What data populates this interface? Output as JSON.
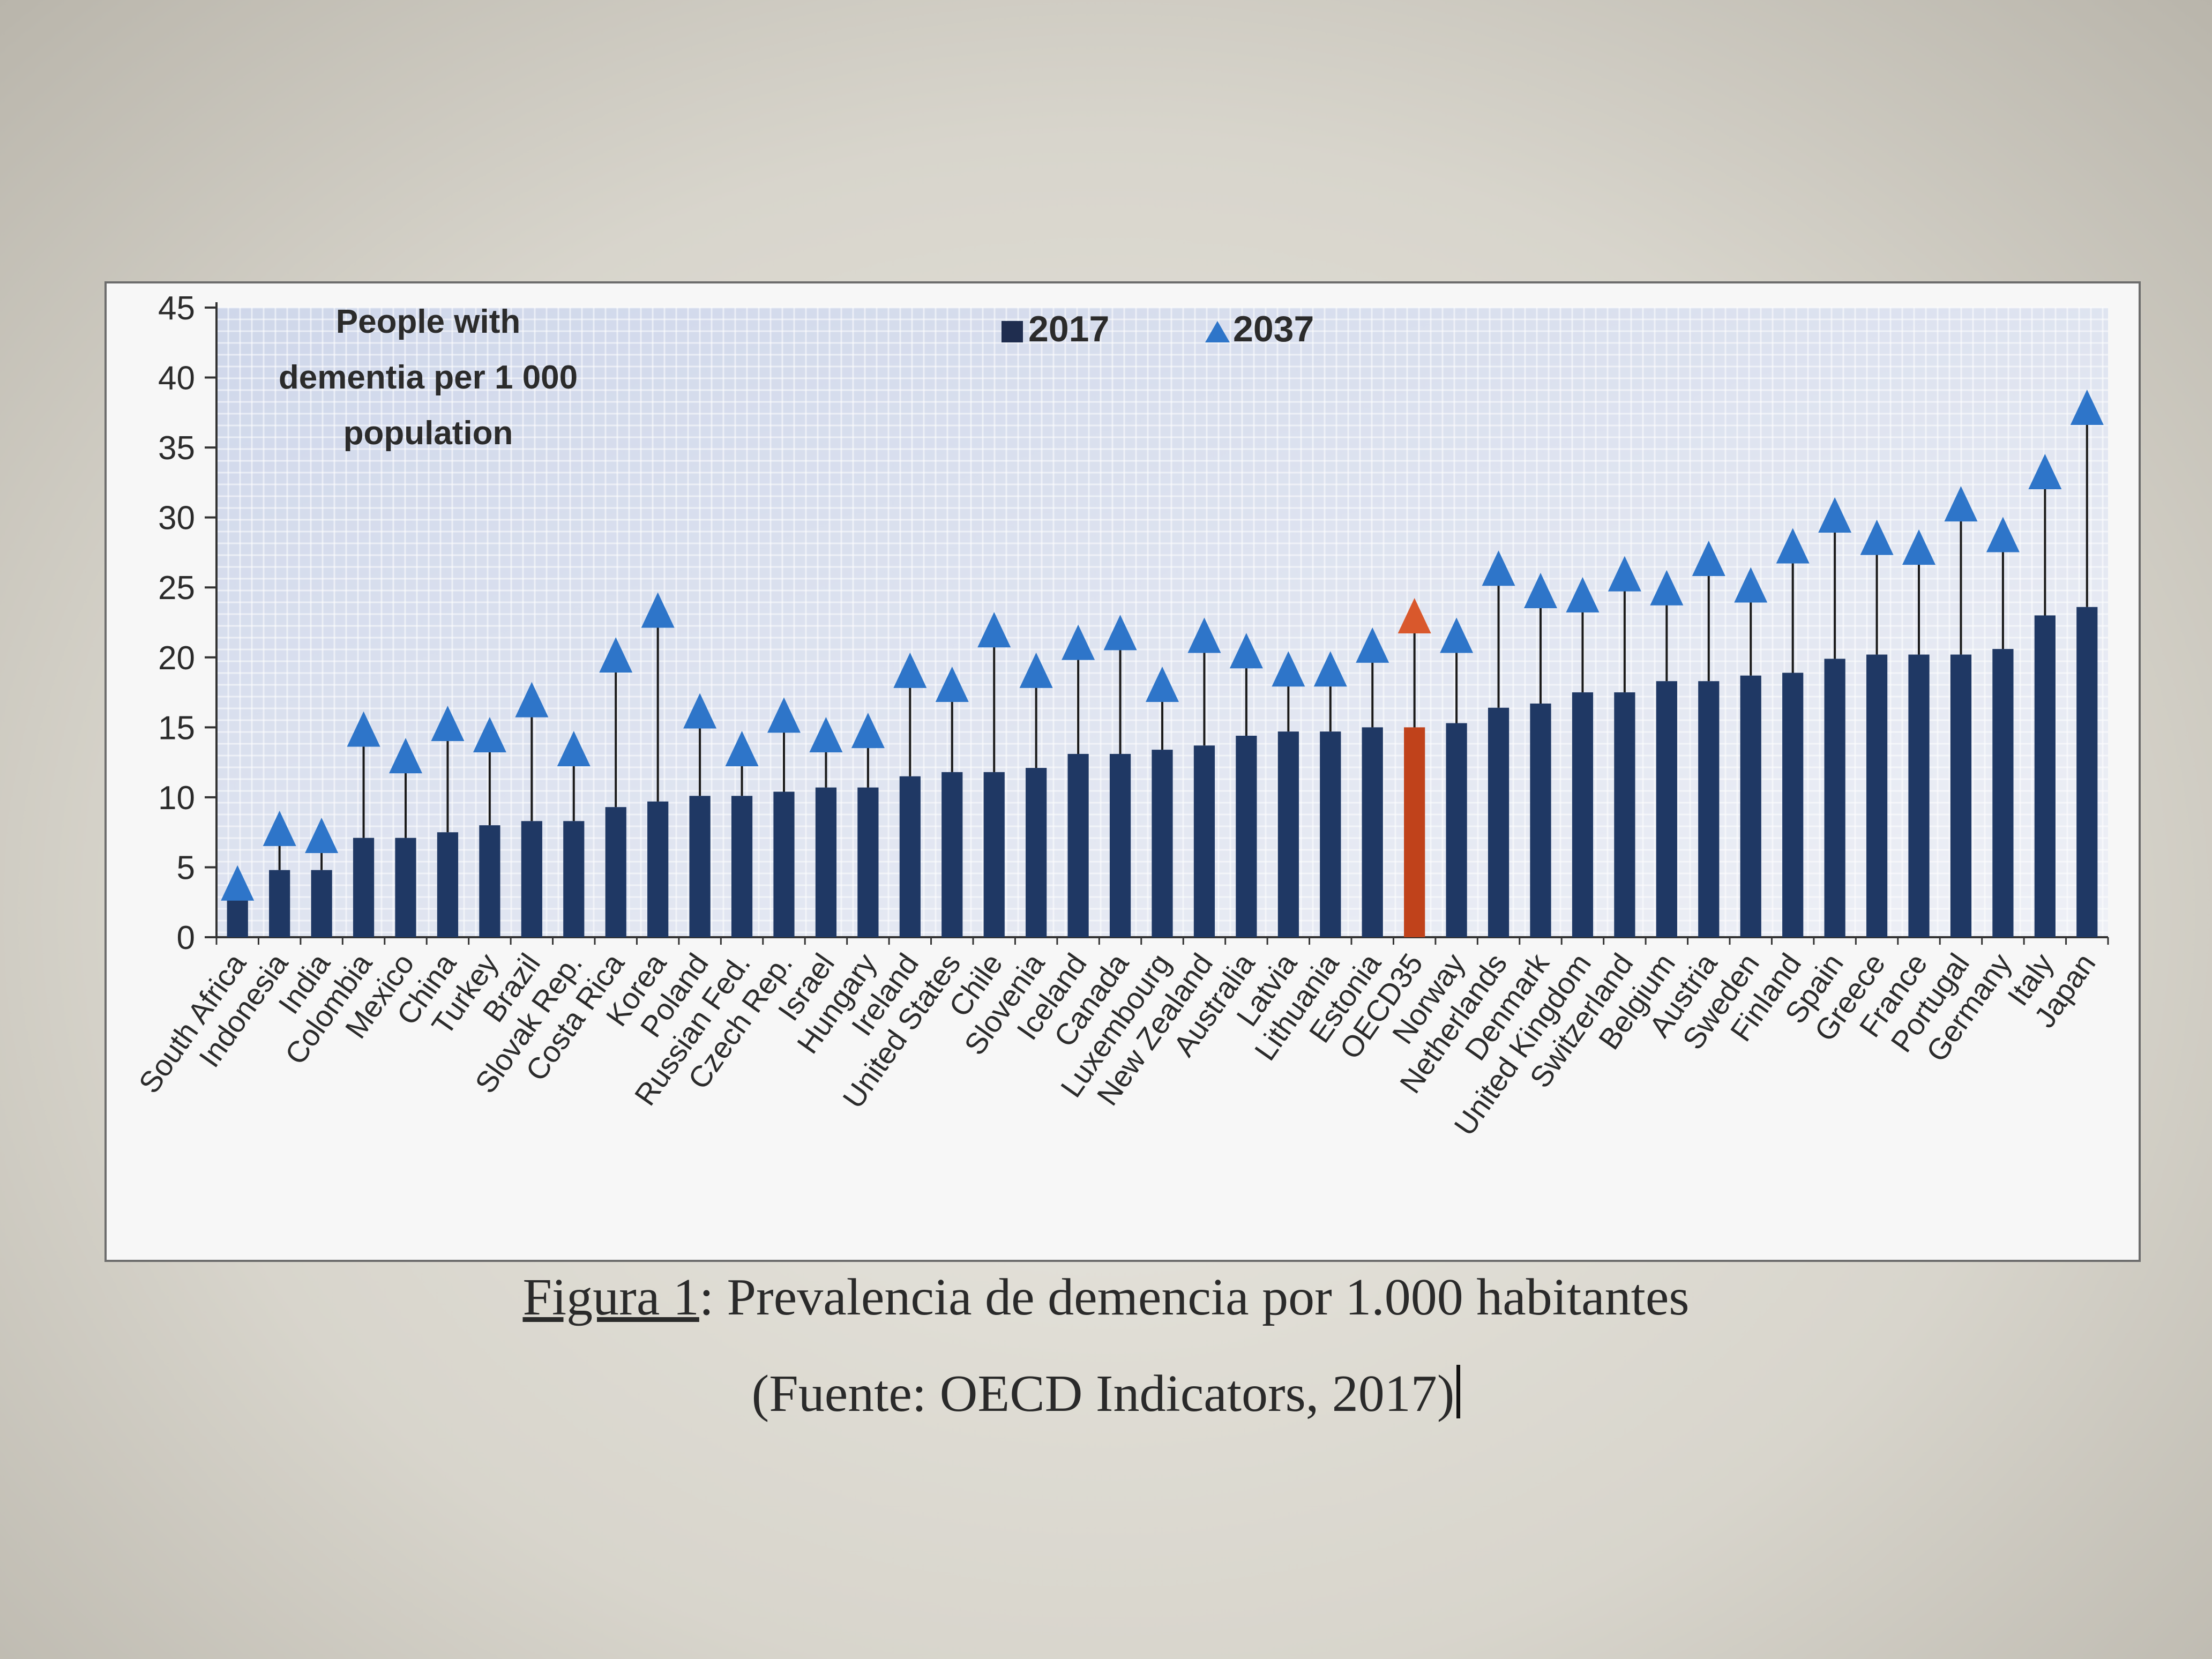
{
  "chart_data": {
    "type": "bar",
    "title": "People with dementia per 1 000 population",
    "title_lines": [
      "People with",
      "dementia per 1 000",
      "population"
    ],
    "legend": [
      {
        "name": "2017",
        "marker": "square"
      },
      {
        "name": "2037",
        "marker": "triangle"
      }
    ],
    "legend_position": "top-center",
    "ylim": [
      0,
      45
    ],
    "yticks": [
      "0",
      "5",
      "10",
      "15",
      "20",
      "25",
      "30",
      "35",
      "40",
      "45"
    ],
    "ytick_values": [
      0,
      5,
      10,
      15,
      20,
      25,
      30,
      35,
      40,
      45
    ],
    "grid": true,
    "categories": [
      "South Africa",
      "Indonesia",
      "India",
      "Colombia",
      "Mexico",
      "China",
      "Turkey",
      "Brazil",
      "Slovak Rep.",
      "Costa Rica",
      "Korea",
      "Poland",
      "Russian Fed.",
      "Czech Rep.",
      "Israel",
      "Hungary",
      "Ireland",
      "United States",
      "Chile",
      "Slovenia",
      "Iceland",
      "Canada",
      "Luxembourg",
      "New Zealand",
      "Australia",
      "Latvia",
      "Lithuania",
      "Estonia",
      "OECD35",
      "Norway",
      "Netherlands",
      "Denmark",
      "United Kingdom",
      "Switzerland",
      "Belgium",
      "Austria",
      "Sweden",
      "Finland",
      "Spain",
      "Greece",
      "France",
      "Portugal",
      "Germany",
      "Italy",
      "Japan"
    ],
    "highlight_category": "OECD35",
    "series": [
      {
        "name": "2017",
        "values": [
          2.7,
          4.8,
          4.8,
          7.1,
          7.1,
          7.5,
          8.0,
          8.3,
          8.3,
          9.3,
          9.7,
          10.1,
          10.1,
          10.4,
          10.7,
          10.7,
          11.5,
          11.8,
          11.8,
          12.1,
          13.1,
          13.1,
          13.4,
          13.7,
          14.4,
          14.7,
          14.7,
          15.0,
          15.0,
          15.3,
          16.4,
          16.7,
          17.5,
          17.5,
          18.3,
          18.3,
          18.7,
          18.9,
          19.9,
          20.2,
          20.2,
          20.2,
          20.6,
          23.0,
          23.6
        ]
      },
      {
        "name": "2037",
        "values": [
          4.3,
          8.2,
          7.7,
          15.3,
          13.4,
          15.7,
          14.9,
          17.4,
          13.9,
          20.6,
          23.8,
          16.6,
          13.9,
          16.3,
          14.9,
          15.2,
          19.5,
          18.5,
          22.4,
          19.5,
          21.5,
          22.2,
          18.5,
          22.0,
          20.9,
          19.6,
          19.6,
          21.3,
          23.4,
          22.0,
          26.8,
          25.2,
          24.9,
          26.4,
          25.4,
          27.5,
          25.6,
          28.4,
          30.6,
          29.0,
          28.3,
          31.4,
          29.2,
          33.7,
          38.3
        ]
      }
    ],
    "colors": {
      "bar": "#1f3864",
      "bar_highlight": "#c0421b",
      "triangle": "#2e75c9",
      "triangle_highlight": "#d9582c"
    }
  },
  "caption": {
    "label": "Figura 1",
    "text": ": Prevalencia de demencia por 1.000 habitantes"
  },
  "source": "(Fuente: OECD Indicators, 2017)"
}
